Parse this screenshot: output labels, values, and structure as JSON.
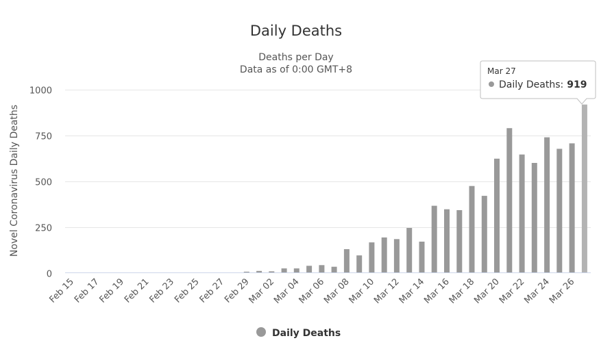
{
  "chart_data": {
    "type": "bar",
    "title": "Daily Deaths",
    "subtitle_lines": [
      "Deaths per Day",
      "Data as of 0:00 GMT+8"
    ],
    "ylabel": "Novel Coronavirus Daily Deaths",
    "xlabel": "",
    "ylim": [
      0,
      1000
    ],
    "yticks": [
      0,
      250,
      500,
      750,
      1000
    ],
    "grid": true,
    "legend_position": "bottom-center",
    "categories": [
      "Feb 15",
      "Feb 16",
      "Feb 17",
      "Feb 18",
      "Feb 19",
      "Feb 20",
      "Feb 21",
      "Feb 22",
      "Feb 23",
      "Feb 24",
      "Feb 25",
      "Feb 26",
      "Feb 27",
      "Feb 28",
      "Feb 29",
      "Mar 01",
      "Mar 02",
      "Mar 03",
      "Mar 04",
      "Mar 05",
      "Mar 06",
      "Mar 07",
      "Mar 08",
      "Mar 09",
      "Mar 10",
      "Mar 11",
      "Mar 12",
      "Mar 13",
      "Mar 14",
      "Mar 15",
      "Mar 16",
      "Mar 17",
      "Mar 18",
      "Mar 19",
      "Mar 20",
      "Mar 21",
      "Mar 22",
      "Mar 23",
      "Mar 24",
      "Mar 25",
      "Mar 26",
      "Mar 27"
    ],
    "x_tick_labels": [
      "Feb 15",
      "Feb 17",
      "Feb 19",
      "Feb 21",
      "Feb 23",
      "Feb 25",
      "Feb 27",
      "Feb 29",
      "Mar 02",
      "Mar 04",
      "Mar 06",
      "Mar 08",
      "Mar 10",
      "Mar 12",
      "Mar 14",
      "Mar 16",
      "Mar 18",
      "Mar 20",
      "Mar 22",
      "Mar 24",
      "Mar 26"
    ],
    "series": [
      {
        "name": "Daily Deaths",
        "color": "#999999",
        "values": [
          0,
          0,
          0,
          0,
          0,
          0,
          0,
          0,
          0,
          0,
          0,
          0,
          0,
          0,
          6,
          10,
          8,
          24,
          24,
          38,
          42,
          33,
          129,
          95,
          166,
          193,
          184,
          245,
          170,
          366,
          347,
          342,
          474,
          420,
          623,
          790,
          646,
          600,
          740,
          677,
          707,
          919
        ]
      }
    ],
    "highlight_color": "#b3b3b3",
    "tooltip": {
      "category": "Mar 27",
      "series_name": "Daily Deaths",
      "value_text": "919",
      "separator": ":"
    },
    "legend": {
      "label": "Daily Deaths",
      "color": "#999999"
    }
  }
}
